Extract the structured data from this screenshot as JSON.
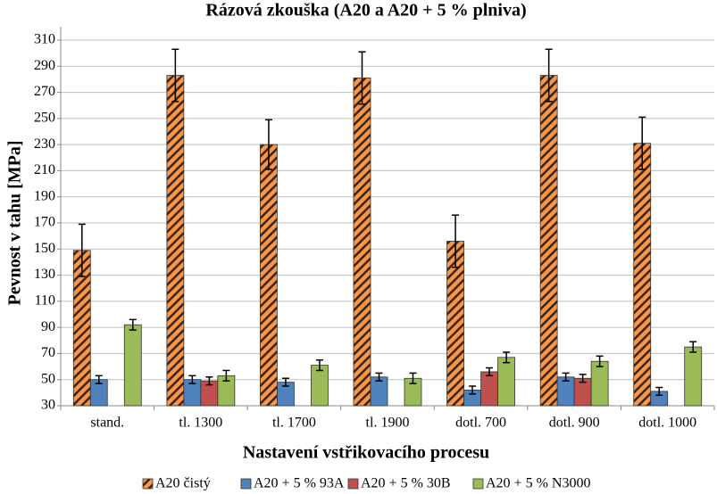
{
  "chart_data": {
    "type": "bar",
    "title": "Rázová zkouška (A20 a A20 + 5 % plniva)",
    "x_label": "Nastavení vstřikovacího procesu",
    "y_label": "Pevnost v tahu [MPa]",
    "categories": [
      "stand.",
      "tl. 1300",
      "tl. 1700",
      "tl. 1900",
      "dotl. 700",
      "dotl. 900",
      "dotl. 1000"
    ],
    "series": [
      {
        "name": "A20 čistý",
        "color": "#f79646",
        "pattern": "diagonal-hatch",
        "values": [
          149,
          283,
          230,
          281,
          156,
          283,
          231
        ],
        "errors": [
          20,
          20,
          19,
          20,
          20,
          20,
          20
        ]
      },
      {
        "name": "A20 + 5 % 93A",
        "color": "#4f81bd",
        "values": [
          50,
          50,
          48,
          52,
          42,
          52,
          41
        ],
        "errors": [
          3,
          3,
          3,
          3,
          3,
          3,
          3
        ]
      },
      {
        "name": "A20 + 5 % 30B",
        "color": "#c0504d",
        "values": [
          30,
          49,
          30,
          30,
          56,
          51,
          30
        ],
        "errors": [
          null,
          3,
          null,
          null,
          3,
          3,
          null
        ]
      },
      {
        "name": "A20 + 5 % N3000",
        "color": "#9bbb59",
        "values": [
          92,
          53,
          61,
          51,
          67,
          64,
          75
        ],
        "errors": [
          4,
          4,
          4,
          4,
          4,
          4,
          4
        ]
      }
    ],
    "ylim": [
      30,
      310
    ],
    "yticks": [
      30,
      50,
      70,
      90,
      110,
      130,
      150,
      170,
      190,
      210,
      230,
      250,
      270,
      290,
      310
    ],
    "grid": true
  }
}
